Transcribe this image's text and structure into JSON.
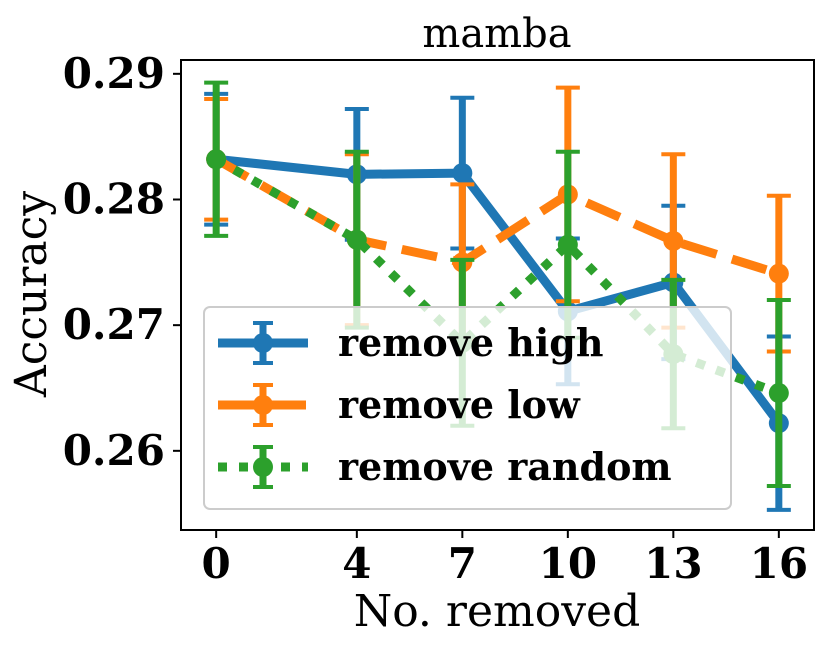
{
  "chart_data": {
    "type": "line",
    "title": "mamba",
    "xlabel": "No. removed",
    "ylabel": "Accuracy",
    "x": [
      0,
      4,
      7,
      10,
      13,
      16
    ],
    "xlim": [
      -1,
      17
    ],
    "ylim": [
      0.2537,
      0.2911
    ],
    "yticks": [
      0.26,
      0.27,
      0.28,
      0.29
    ],
    "ytick_labels": [
      "0.26",
      "0.27",
      "0.28",
      "0.29"
    ],
    "xtick_labels": [
      "0",
      "4",
      "7",
      "10",
      "13",
      "16"
    ],
    "grid": false,
    "legend_position": "lower-left",
    "series": [
      {
        "name": "remove high",
        "color": "#1f77b4",
        "style": "solid",
        "values": [
          0.2832,
          0.282,
          0.2821,
          0.2711,
          0.2734,
          0.2622
        ],
        "errors": [
          0.0052,
          0.0052,
          0.006,
          0.0058,
          0.0061,
          0.0069
        ]
      },
      {
        "name": "remove low",
        "color": "#ff7f0e",
        "style": "dashed",
        "values": [
          0.2832,
          0.2768,
          0.275,
          0.2804,
          0.2767,
          0.2741
        ],
        "errors": [
          0.0048,
          0.0068,
          0.0062,
          0.0085,
          0.0069,
          0.0062
        ]
      },
      {
        "name": "remove random",
        "color": "#2ca02c",
        "style": "dotted",
        "values": [
          0.2832,
          0.2768,
          0.2686,
          0.2764,
          0.2677,
          0.2646
        ],
        "errors": [
          0.0061,
          0.007,
          0.0066,
          0.0074,
          0.0059,
          0.0074
        ]
      }
    ]
  }
}
